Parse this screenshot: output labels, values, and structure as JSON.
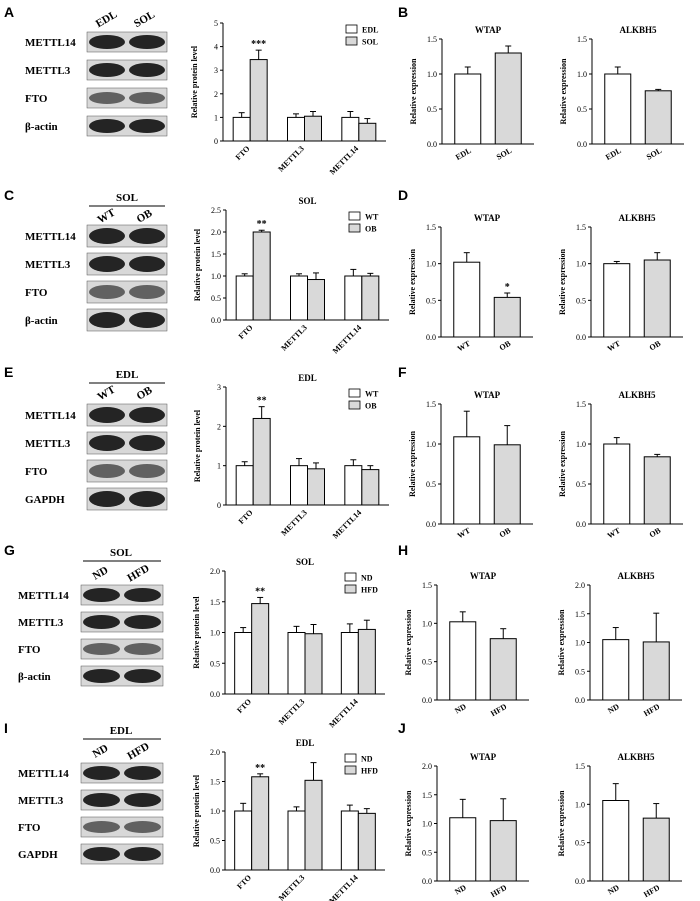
{
  "colors": {
    "bar_control": "#ffffff",
    "bar_treat": "#d9d9d9",
    "axis": "#000000",
    "blot_bg": "#d8d8d8",
    "blot_band": "#1a1a1a"
  },
  "rows": [
    {
      "letters": [
        "A",
        "B"
      ],
      "blot": {
        "groups": [
          "EDL",
          "SOL"
        ],
        "header": "",
        "bands": [
          "METTL14",
          "METTL3",
          "FTO",
          "β-actin"
        ]
      },
      "chart_data": [
        {
          "type": "bar",
          "title": "",
          "ylabel": "Relative protein level",
          "ylim": [
            0,
            5
          ],
          "yticks": [
            0,
            1,
            2,
            3,
            4,
            5
          ],
          "categories": [
            "FTO",
            "METTL3",
            "METTL14"
          ],
          "rotated_ticks": true,
          "series": [
            {
              "name": "EDL",
              "color": "#ffffff",
              "values": [
                1.0,
                1.0,
                1.0
              ],
              "errors": [
                0.2,
                0.15,
                0.25
              ]
            },
            {
              "name": "SOL",
              "color": "#d9d9d9",
              "values": [
                3.45,
                1.05,
                0.75
              ],
              "errors": [
                0.4,
                0.2,
                0.2
              ]
            }
          ],
          "annotations": [
            {
              "category": "FTO",
              "text": "***"
            }
          ]
        },
        {
          "type": "bar",
          "title": "WTAP",
          "ylabel": "Relative expression",
          "ylim": [
            0,
            1.5
          ],
          "yticks": [
            "0.0",
            "0.5",
            "1.0",
            "1.5"
          ],
          "categories": [
            "EDL",
            "SOL"
          ],
          "colors": [
            "#ffffff",
            "#d9d9d9"
          ],
          "values": [
            1.0,
            1.3
          ],
          "errors": [
            0.1,
            0.1
          ],
          "annotations": []
        },
        {
          "type": "bar",
          "title": "ALKBH5",
          "ylabel": "Relative expression",
          "ylim": [
            0,
            1.5
          ],
          "yticks": [
            "0.0",
            "0.5",
            "1.0",
            "1.5"
          ],
          "categories": [
            "EDL",
            "SOL"
          ],
          "colors": [
            "#ffffff",
            "#d9d9d9"
          ],
          "values": [
            1.0,
            0.76
          ],
          "errors": [
            0.1,
            0.02
          ],
          "annotations": []
        }
      ]
    },
    {
      "letters": [
        "C",
        "D"
      ],
      "blot": {
        "groups": [
          "WT",
          "OB"
        ],
        "header": "SOL",
        "bands": [
          "METTL14",
          "METTL3",
          "FTO",
          "β-actin"
        ]
      },
      "chart_data": [
        {
          "type": "bar",
          "title": "SOL",
          "ylabel": "Relative protein level",
          "ylim": [
            0,
            2.5
          ],
          "yticks": [
            "0.0",
            "0.5",
            "1.0",
            "1.5",
            "2.0",
            "2.5"
          ],
          "categories": [
            "FTO",
            "METTL3",
            "METTL14"
          ],
          "rotated_ticks": true,
          "series": [
            {
              "name": "WT",
              "color": "#ffffff",
              "values": [
                1.0,
                1.0,
                1.0
              ],
              "errors": [
                0.05,
                0.05,
                0.15
              ]
            },
            {
              "name": "OB",
              "color": "#d9d9d9",
              "values": [
                2.0,
                0.92,
                1.0
              ],
              "errors": [
                0.04,
                0.15,
                0.06
              ]
            }
          ],
          "annotations": [
            {
              "category": "FTO",
              "text": "**"
            }
          ]
        },
        {
          "type": "bar",
          "title": "WTAP",
          "ylabel": "Relative expression",
          "ylim": [
            0,
            1.5
          ],
          "yticks": [
            "0.0",
            "0.5",
            "1.0",
            "1.5"
          ],
          "categories": [
            "WT",
            "OB"
          ],
          "colors": [
            "#ffffff",
            "#d9d9d9"
          ],
          "values": [
            1.02,
            0.54
          ],
          "errors": [
            0.13,
            0.06
          ],
          "annotations": [
            {
              "index": 1,
              "text": "*"
            }
          ]
        },
        {
          "type": "bar",
          "title": "ALKBH5",
          "ylabel": "Relative expression",
          "ylim": [
            0,
            1.5
          ],
          "yticks": [
            "0.0",
            "0.5",
            "1.0",
            "1.5"
          ],
          "categories": [
            "WT",
            "OB"
          ],
          "colors": [
            "#ffffff",
            "#d9d9d9"
          ],
          "values": [
            1.0,
            1.05
          ],
          "errors": [
            0.03,
            0.1
          ],
          "annotations": []
        }
      ]
    },
    {
      "letters": [
        "E",
        "F"
      ],
      "blot": {
        "groups": [
          "WT",
          "OB"
        ],
        "header": "EDL",
        "bands": [
          "METTL14",
          "METTL3",
          "FTO",
          "GAPDH"
        ]
      },
      "chart_data": [
        {
          "type": "bar",
          "title": "EDL",
          "ylabel": "Relative protein level",
          "ylim": [
            0,
            3
          ],
          "yticks": [
            0,
            1,
            2,
            3
          ],
          "categories": [
            "FTO",
            "METTL3",
            "METTL14"
          ],
          "rotated_ticks": true,
          "series": [
            {
              "name": "WT",
              "color": "#ffffff",
              "values": [
                1.0,
                1.0,
                1.0
              ],
              "errors": [
                0.1,
                0.18,
                0.15
              ]
            },
            {
              "name": "OB",
              "color": "#d9d9d9",
              "values": [
                2.2,
                0.92,
                0.9
              ],
              "errors": [
                0.3,
                0.15,
                0.1
              ]
            }
          ],
          "annotations": [
            {
              "category": "FTO",
              "text": "**"
            }
          ]
        },
        {
          "type": "bar",
          "title": "WTAP",
          "ylabel": "Relative expression",
          "ylim": [
            0,
            1.5
          ],
          "yticks": [
            "0.0",
            "0.5",
            "1.0",
            "1.5"
          ],
          "categories": [
            "WT",
            "OB"
          ],
          "colors": [
            "#ffffff",
            "#d9d9d9"
          ],
          "values": [
            1.09,
            0.99
          ],
          "errors": [
            0.32,
            0.24
          ],
          "annotations": []
        },
        {
          "type": "bar",
          "title": "ALKBH5",
          "ylabel": "Relative expression",
          "ylim": [
            0,
            1.5
          ],
          "yticks": [
            "0.0",
            "0.5",
            "1.0",
            "1.5"
          ],
          "categories": [
            "WT",
            "OB"
          ],
          "colors": [
            "#ffffff",
            "#d9d9d9"
          ],
          "values": [
            1.0,
            0.84
          ],
          "errors": [
            0.08,
            0.03
          ],
          "annotations": []
        }
      ]
    },
    {
      "letters": [
        "G",
        "H"
      ],
      "blot": {
        "groups": [
          "ND",
          "HFD"
        ],
        "header": "SOL",
        "bands": [
          "METTL14",
          "METTL3",
          "FTO",
          "β-actin"
        ]
      },
      "chart_data": [
        {
          "type": "bar",
          "title": "SOL",
          "ylabel": "Relative protein level",
          "ylim": [
            0,
            2.0
          ],
          "yticks": [
            "0.0",
            "0.5",
            "1.0",
            "1.5",
            "2.0"
          ],
          "categories": [
            "FTO",
            "METTL3",
            "METTL14"
          ],
          "rotated_ticks": true,
          "series": [
            {
              "name": "ND",
              "color": "#ffffff",
              "values": [
                1.0,
                1.0,
                1.0
              ],
              "errors": [
                0.08,
                0.1,
                0.14
              ]
            },
            {
              "name": "HFD",
              "color": "#d9d9d9",
              "values": [
                1.47,
                0.98,
                1.05
              ],
              "errors": [
                0.1,
                0.15,
                0.15
              ]
            }
          ],
          "annotations": [
            {
              "category": "FTO",
              "text": "**"
            }
          ]
        },
        {
          "type": "bar",
          "title": "WTAP",
          "ylabel": "Relative expression",
          "ylim": [
            0,
            1.5
          ],
          "yticks": [
            "0.0",
            "0.5",
            "1.0",
            "1.5"
          ],
          "categories": [
            "ND",
            "HFD"
          ],
          "colors": [
            "#ffffff",
            "#d9d9d9"
          ],
          "values": [
            1.02,
            0.8
          ],
          "errors": [
            0.13,
            0.13
          ],
          "annotations": []
        },
        {
          "type": "bar",
          "title": "ALKBH5",
          "ylabel": "Relative expression",
          "ylim": [
            0,
            2.0
          ],
          "yticks": [
            "0.0",
            "0.5",
            "1.0",
            "1.5",
            "2.0"
          ],
          "categories": [
            "ND",
            "HFD"
          ],
          "colors": [
            "#ffffff",
            "#d9d9d9"
          ],
          "values": [
            1.05,
            1.01
          ],
          "errors": [
            0.21,
            0.5
          ],
          "annotations": []
        }
      ]
    },
    {
      "letters": [
        "I",
        "J"
      ],
      "blot": {
        "groups": [
          "ND",
          "HFD"
        ],
        "header": "EDL",
        "bands": [
          "METTL14",
          "METTL3",
          "FTO",
          "GAPDH"
        ]
      },
      "chart_data": [
        {
          "type": "bar",
          "title": "EDL",
          "ylabel": "Relative protein level",
          "ylim": [
            0,
            2.0
          ],
          "yticks": [
            "0.0",
            "0.5",
            "1.0",
            "1.5",
            "2.0"
          ],
          "categories": [
            "FTO",
            "METTL3",
            "METTL14"
          ],
          "rotated_ticks": true,
          "series": [
            {
              "name": "ND",
              "color": "#ffffff",
              "values": [
                1.0,
                1.0,
                1.0
              ],
              "errors": [
                0.13,
                0.07,
                0.1
              ]
            },
            {
              "name": "HFD",
              "color": "#d9d9d9",
              "values": [
                1.58,
                1.52,
                0.96
              ],
              "errors": [
                0.05,
                0.3,
                0.08
              ]
            }
          ],
          "annotations": [
            {
              "category": "FTO",
              "text": "**"
            }
          ]
        },
        {
          "type": "bar",
          "title": "WTAP",
          "ylabel": "Relative expression",
          "ylim": [
            0,
            2.0
          ],
          "yticks": [
            "0.0",
            "0.5",
            "1.0",
            "1.5",
            "2.0"
          ],
          "categories": [
            "ND",
            "HFD"
          ],
          "colors": [
            "#ffffff",
            "#d9d9d9"
          ],
          "values": [
            1.1,
            1.05
          ],
          "errors": [
            0.32,
            0.38
          ],
          "annotations": []
        },
        {
          "type": "bar",
          "title": "ALKBH5",
          "ylabel": "Relative expression",
          "ylim": [
            0,
            1.5
          ],
          "yticks": [
            "0.0",
            "0.5",
            "1.0",
            "1.5"
          ],
          "categories": [
            "ND",
            "HFD"
          ],
          "colors": [
            "#ffffff",
            "#d9d9d9"
          ],
          "values": [
            1.05,
            0.82
          ],
          "errors": [
            0.22,
            0.19
          ],
          "annotations": []
        }
      ]
    }
  ]
}
